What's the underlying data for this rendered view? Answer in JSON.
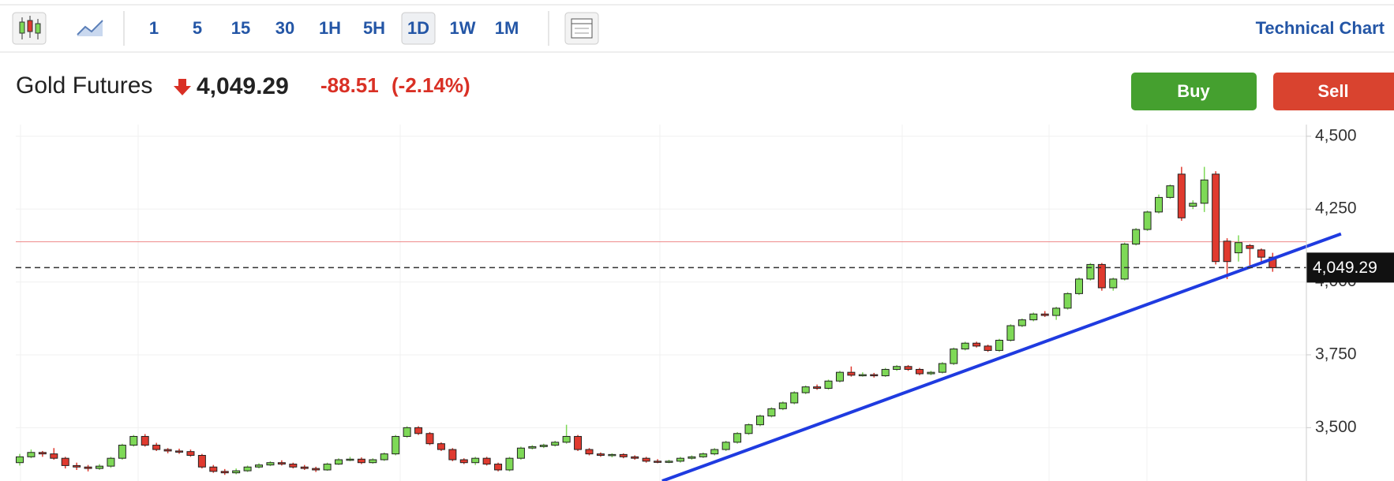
{
  "toolbar": {
    "intervals": [
      "1",
      "5",
      "15",
      "30",
      "1H",
      "5H",
      "1D",
      "1W",
      "1M"
    ],
    "selected": "1D",
    "link": "Technical Chart"
  },
  "header": {
    "name": "Gold Futures",
    "price": {
      "value": 4049.29,
      "label": "4,049.29"
    },
    "change": {
      "value": -88.51,
      "label": "-88.51"
    },
    "change_pct": {
      "value": -2.14,
      "label": "(-2.14%)"
    },
    "buy": "Buy",
    "sell": "Sell"
  },
  "chart_data": {
    "type": "candlestick",
    "up_color": "#7ed957",
    "down_color": "#e03a2f",
    "ylim": [
      3317,
      4540
    ],
    "yticks": [
      {
        "value": 3500,
        "label": "3,500"
      },
      {
        "value": 3750,
        "label": "3,750"
      },
      {
        "value": 4000,
        "label": "4,000"
      },
      {
        "value": 4250,
        "label": "4,250"
      },
      {
        "value": 4500,
        "label": "4,500"
      }
    ],
    "grid": true,
    "last_price": {
      "value": 4049.29,
      "label": "4,049.29"
    },
    "prev_close": 4137.8,
    "trendline": {
      "x": [
        56.4,
        116
      ],
      "values": [
        3317,
        4165
      ],
      "color": "#1f3be0"
    },
    "candles": [
      [
        3380,
        3410,
        3370,
        3400
      ],
      [
        3400,
        3425,
        3395,
        3415
      ],
      [
        3415,
        3420,
        3400,
        3410
      ],
      [
        3410,
        3430,
        3390,
        3395
      ],
      [
        3395,
        3400,
        3360,
        3370
      ],
      [
        3370,
        3380,
        3355,
        3365
      ],
      [
        3365,
        3372,
        3350,
        3360
      ],
      [
        3360,
        3375,
        3355,
        3368
      ],
      [
        3368,
        3400,
        3362,
        3395
      ],
      [
        3395,
        3445,
        3390,
        3440
      ],
      [
        3440,
        3475,
        3435,
        3470
      ],
      [
        3470,
        3478,
        3435,
        3440
      ],
      [
        3440,
        3448,
        3420,
        3425
      ],
      [
        3425,
        3430,
        3412,
        3420
      ],
      [
        3420,
        3428,
        3410,
        3418
      ],
      [
        3418,
        3425,
        3400,
        3405
      ],
      [
        3405,
        3410,
        3360,
        3365
      ],
      [
        3365,
        3372,
        3345,
        3350
      ],
      [
        3350,
        3358,
        3338,
        3345
      ],
      [
        3345,
        3360,
        3340,
        3352
      ],
      [
        3352,
        3370,
        3348,
        3365
      ],
      [
        3365,
        3378,
        3360,
        3372
      ],
      [
        3372,
        3385,
        3368,
        3380
      ],
      [
        3380,
        3388,
        3370,
        3375
      ],
      [
        3375,
        3380,
        3360,
        3365
      ],
      [
        3365,
        3372,
        3355,
        3360
      ],
      [
        3360,
        3366,
        3348,
        3355
      ],
      [
        3355,
        3380,
        3352,
        3375
      ],
      [
        3375,
        3395,
        3372,
        3390
      ],
      [
        3390,
        3400,
        3385,
        3392
      ],
      [
        3392,
        3398,
        3375,
        3380
      ],
      [
        3380,
        3395,
        3376,
        3390
      ],
      [
        3390,
        3415,
        3386,
        3410
      ],
      [
        3410,
        3475,
        3405,
        3470
      ],
      [
        3470,
        3505,
        3465,
        3500
      ],
      [
        3500,
        3505,
        3475,
        3480
      ],
      [
        3480,
        3485,
        3440,
        3445
      ],
      [
        3445,
        3450,
        3420,
        3425
      ],
      [
        3425,
        3430,
        3385,
        3390
      ],
      [
        3390,
        3395,
        3375,
        3380
      ],
      [
        3380,
        3400,
        3372,
        3395
      ],
      [
        3395,
        3400,
        3370,
        3375
      ],
      [
        3375,
        3380,
        3350,
        3355
      ],
      [
        3355,
        3400,
        3350,
        3395
      ],
      [
        3395,
        3435,
        3390,
        3430
      ],
      [
        3430,
        3440,
        3425,
        3435
      ],
      [
        3435,
        3445,
        3430,
        3440
      ],
      [
        3440,
        3455,
        3435,
        3450
      ],
      [
        3450,
        3510,
        3445,
        3470
      ],
      [
        3470,
        3475,
        3420,
        3425
      ],
      [
        3425,
        3430,
        3405,
        3410
      ],
      [
        3410,
        3415,
        3400,
        3405
      ],
      [
        3405,
        3412,
        3398,
        3408
      ],
      [
        3408,
        3412,
        3395,
        3400
      ],
      [
        3400,
        3405,
        3390,
        3395
      ],
      [
        3395,
        3400,
        3380,
        3385
      ],
      [
        3385,
        3392,
        3378,
        3382
      ],
      [
        3382,
        3390,
        3378,
        3385
      ],
      [
        3385,
        3400,
        3380,
        3395
      ],
      [
        3395,
        3405,
        3390,
        3400
      ],
      [
        3400,
        3415,
        3396,
        3410
      ],
      [
        3410,
        3430,
        3405,
        3425
      ],
      [
        3425,
        3455,
        3420,
        3450
      ],
      [
        3450,
        3485,
        3445,
        3480
      ],
      [
        3480,
        3515,
        3475,
        3510
      ],
      [
        3510,
        3545,
        3505,
        3540
      ],
      [
        3540,
        3570,
        3535,
        3565
      ],
      [
        3565,
        3590,
        3560,
        3585
      ],
      [
        3585,
        3625,
        3580,
        3620
      ],
      [
        3620,
        3645,
        3615,
        3640
      ],
      [
        3640,
        3648,
        3630,
        3635
      ],
      [
        3635,
        3665,
        3630,
        3660
      ],
      [
        3660,
        3695,
        3655,
        3690
      ],
      [
        3690,
        3710,
        3675,
        3680
      ],
      [
        3680,
        3690,
        3675,
        3682
      ],
      [
        3682,
        3688,
        3672,
        3678
      ],
      [
        3678,
        3705,
        3674,
        3700
      ],
      [
        3700,
        3715,
        3695,
        3710
      ],
      [
        3710,
        3715,
        3695,
        3700
      ],
      [
        3700,
        3705,
        3680,
        3685
      ],
      [
        3685,
        3695,
        3680,
        3690
      ],
      [
        3690,
        3725,
        3686,
        3720
      ],
      [
        3720,
        3775,
        3715,
        3770
      ],
      [
        3770,
        3795,
        3765,
        3790
      ],
      [
        3790,
        3795,
        3775,
        3780
      ],
      [
        3780,
        3785,
        3760,
        3765
      ],
      [
        3765,
        3805,
        3760,
        3800
      ],
      [
        3800,
        3855,
        3795,
        3850
      ],
      [
        3850,
        3875,
        3845,
        3870
      ],
      [
        3870,
        3895,
        3865,
        3890
      ],
      [
        3890,
        3900,
        3880,
        3885
      ],
      [
        3885,
        3915,
        3870,
        3910
      ],
      [
        3910,
        3965,
        3905,
        3960
      ],
      [
        3960,
        4015,
        3955,
        4010
      ],
      [
        4010,
        4065,
        4005,
        4060
      ],
      [
        4060,
        4065,
        3970,
        3980
      ],
      [
        3980,
        4015,
        3970,
        4010
      ],
      [
        4010,
        4135,
        4005,
        4130
      ],
      [
        4130,
        4185,
        4125,
        4180
      ],
      [
        4180,
        4245,
        4175,
        4240
      ],
      [
        4240,
        4300,
        4235,
        4290
      ],
      [
        4290,
        4335,
        4285,
        4330
      ],
      [
        4370,
        4395,
        4210,
        4220
      ],
      [
        4260,
        4280,
        4250,
        4270
      ],
      [
        4270,
        4395,
        4240,
        4350
      ],
      [
        4370,
        4380,
        4060,
        4070
      ],
      [
        4140,
        4150,
        4010,
        4070
      ],
      [
        4100,
        4160,
        4070,
        4135
      ],
      [
        4125,
        4130,
        4050,
        4115
      ],
      [
        4110,
        4115,
        4070,
        4085
      ],
      [
        4085,
        4100,
        4035,
        4049
      ]
    ]
  }
}
